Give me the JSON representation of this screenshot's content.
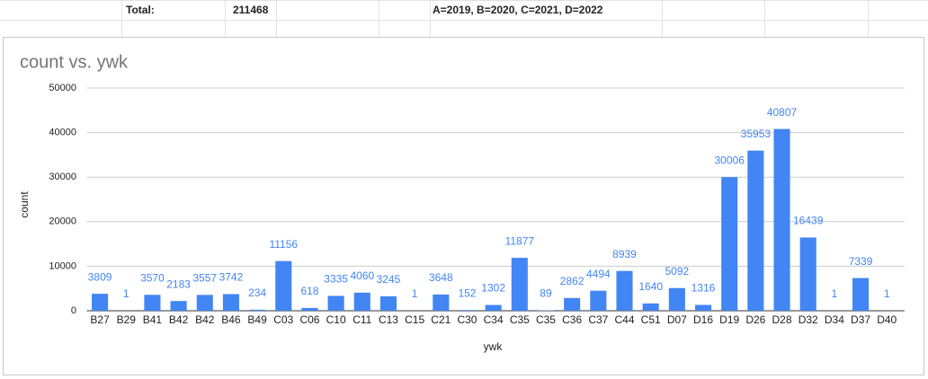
{
  "header": {
    "cells": [
      "Total:",
      211468,
      "A=2019, B=2020, C=2021, D=2022"
    ]
  },
  "chart_data": {
    "type": "bar",
    "title": "count vs. ywk",
    "xlabel": "ywk",
    "ylabel": "count",
    "categories": [
      "B27",
      "B29",
      "B41",
      "B42",
      "B42",
      "B46",
      "B49",
      "C03",
      "C06",
      "C10",
      "C11",
      "C13",
      "C15",
      "C21",
      "C30",
      "C34",
      "C35",
      "C35",
      "C36",
      "C37",
      "C44",
      "C51",
      "D07",
      "D16",
      "D19",
      "D26",
      "D28",
      "D32",
      "D34",
      "D37",
      "D40"
    ],
    "values": [
      3809,
      1,
      3570,
      2183,
      3557,
      3742,
      234,
      11156,
      618,
      3335,
      4060,
      3245,
      1,
      3648,
      152,
      1302,
      11877,
      89,
      2862,
      4494,
      8939,
      1640,
      5092,
      1316,
      30006,
      35953,
      40807,
      16439,
      1,
      7339,
      1
    ],
    "color": "#4285f4",
    "ylim": [
      0,
      50000
    ],
    "yticks": [
      0,
      10000,
      20000,
      30000,
      40000,
      50000
    ],
    "grid": true
  }
}
